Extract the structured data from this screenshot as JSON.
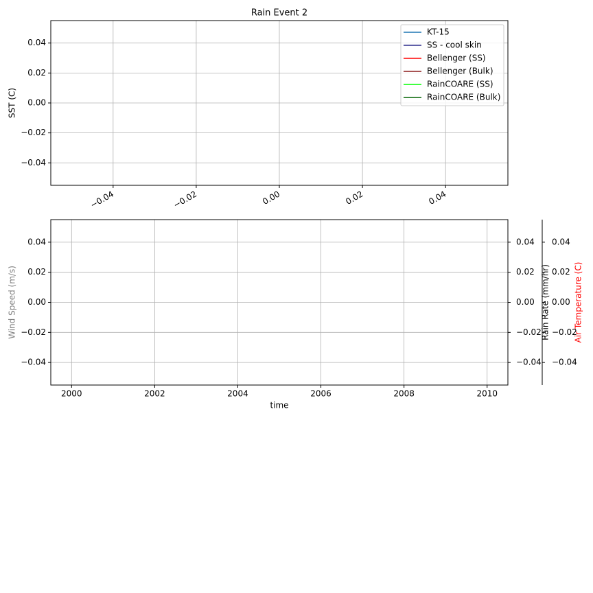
{
  "chart_data": [
    {
      "type": "line",
      "title": "Rain Event 2",
      "ylabel": "SST (C)",
      "x": [],
      "series": [
        {
          "name": "KT-15",
          "color": "#1f77b4",
          "values": []
        },
        {
          "name": "SS - cool skin",
          "color": "#2b2b8c",
          "values": []
        },
        {
          "name": "Bellenger (SS)",
          "color": "#ff0000",
          "values": []
        },
        {
          "name": "Bellenger (Bulk)",
          "color": "#8b1a1a",
          "values": []
        },
        {
          "name": "RainCOARE (SS)",
          "color": "#00ff00",
          "values": []
        },
        {
          "name": "RainCOARE (Bulk)",
          "color": "#006400",
          "values": []
        }
      ],
      "xlim": [
        -0.055,
        0.055
      ],
      "xticks": [
        {
          "value": -0.04,
          "label": "−0.04"
        },
        {
          "value": -0.02,
          "label": "−0.02"
        },
        {
          "value": 0,
          "label": "0.00"
        },
        0.02,
        0.04
      ],
      "ylim": [
        -0.055,
        0.055
      ],
      "yticks": [
        {
          "value": -0.04,
          "label": "−0.04"
        },
        {
          "value": -0.02,
          "label": "−0.02"
        },
        {
          "value": 0,
          "label": "0.00"
        },
        0.02,
        0.04
      ],
      "grid": true,
      "legend": "upper right"
    },
    {
      "type": "line",
      "xlabel": "time",
      "ylabel": "Wind Speed (m/s)",
      "ylabel_color": "#808080",
      "y2label": "Rain Rate (mm/hr)",
      "y3label": "Air Temperature (C)",
      "y3label_color": "#ff0000",
      "xlim": [
        1999.5,
        2010.5
      ],
      "xticks": [
        2000,
        2002,
        2004,
        2006,
        2008,
        2010
      ],
      "ylim": [
        -0.055,
        0.055
      ],
      "yticks": [
        {
          "value": -0.04,
          "label": "−0.04"
        },
        {
          "value": -0.02,
          "label": "−0.02"
        },
        {
          "value": 0,
          "label": "0.00"
        },
        0.02,
        0.04
      ],
      "y2lim": [
        -0.055,
        0.055
      ],
      "y2ticks": [
        {
          "value": -0.04,
          "label": "−0.04"
        },
        {
          "value": -0.02,
          "label": "−0.02"
        },
        {
          "value": 0,
          "label": "0.00"
        },
        0.02,
        0.04
      ],
      "y3lim": [
        -0.055,
        0.055
      ],
      "y3ticks": [
        {
          "value": -0.04,
          "label": "−0.04"
        },
        {
          "value": -0.02,
          "label": "−0.02"
        },
        {
          "value": 0,
          "label": "0.00"
        },
        0.02,
        0.04
      ],
      "grid": true
    }
  ]
}
